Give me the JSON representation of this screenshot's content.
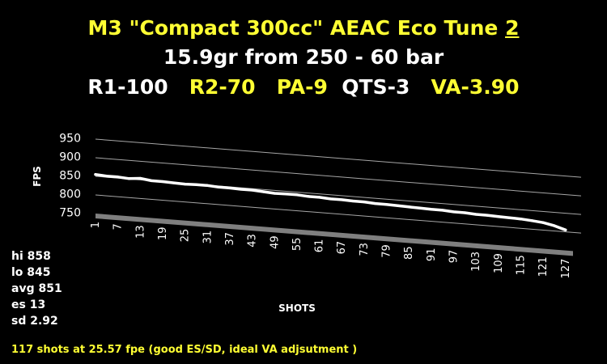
{
  "title": {
    "line1_prefix": "M3 \"Compact 300cc\" AEAC Eco Tune ",
    "line1_underlined": "2",
    "line2": "15.9gr from 250 - 60 bar",
    "line3_parts": [
      {
        "text": "R1-100",
        "color": "#ffffff"
      },
      {
        "text": "R2-70",
        "color": "#ffff33"
      },
      {
        "text": "PA-9",
        "color": "#ffff33"
      },
      {
        "text": "QTS-3",
        "color": "#ffffff"
      },
      {
        "text": "VA-3.90",
        "color": "#ffff33"
      }
    ]
  },
  "stats": [
    "hi 858",
    "lo 845",
    "avg 851",
    "es 13",
    "sd 2.92"
  ],
  "footnote": "117 shots at 25.57 fpe (good ES/SD, ideal VA adjsutment )",
  "chart_data": {
    "type": "line",
    "xlabel": "SHOTS",
    "ylabel": "FPS",
    "ylim": [
      750,
      950
    ],
    "yticks": [
      750,
      800,
      850,
      900,
      950
    ],
    "xticks": [
      1,
      7,
      13,
      19,
      25,
      31,
      37,
      43,
      49,
      55,
      61,
      67,
      73,
      79,
      85,
      91,
      97,
      103,
      109,
      115,
      121,
      127
    ],
    "grid": true,
    "legend": "none",
    "line_color": "#ffffff",
    "series": [
      {
        "x": [
          1,
          4,
          7,
          10,
          13,
          16,
          19,
          22,
          25,
          28,
          31,
          34,
          37,
          40,
          43,
          46,
          49,
          52,
          55,
          58,
          61,
          64,
          67,
          70,
          73,
          76,
          79,
          82,
          85,
          88,
          91,
          94,
          97,
          100,
          103,
          106,
          109,
          112,
          115,
          118,
          121,
          124,
          127
        ],
        "values": [
          855,
          853,
          853,
          851,
          854,
          850,
          850,
          849,
          848,
          849,
          849,
          847,
          847,
          846,
          846,
          844,
          842,
          843,
          843,
          841,
          841,
          839,
          839,
          838,
          838,
          836,
          836,
          835,
          834,
          833,
          832,
          832,
          830,
          830,
          828,
          828,
          827,
          826,
          825,
          823,
          820,
          814,
          805
        ]
      }
    ]
  }
}
